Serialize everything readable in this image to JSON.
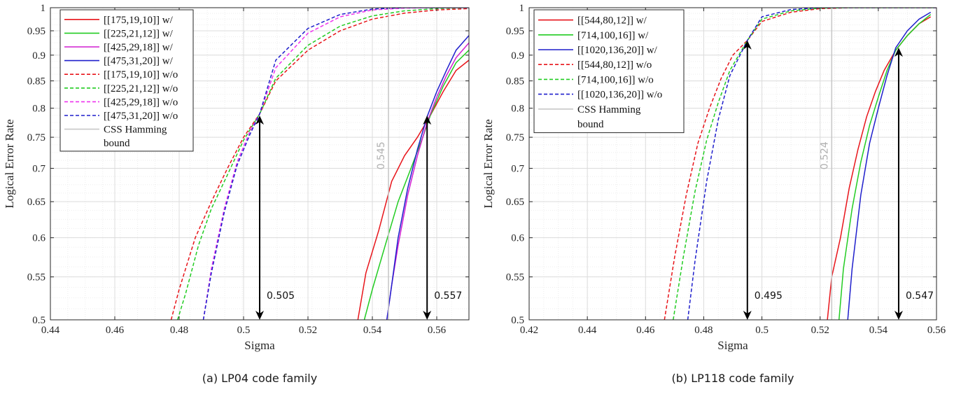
{
  "chart_data": [
    {
      "type": "line",
      "caption": "(a) LP04 code family",
      "xlabel": "Sigma",
      "ylabel": "Logical Error Rate",
      "xlim": [
        0.44,
        0.57
      ],
      "ylim": [
        0.5,
        1
      ],
      "y_scale": "log",
      "grid": true,
      "legend_position": "top-left",
      "x_ticks": [
        0.44,
        0.46,
        0.48,
        0.5,
        0.52,
        0.54,
        0.56
      ],
      "x_tick_labels": [
        "0.44",
        "0.46",
        "0.48",
        "0.5",
        "0.52",
        "0.54",
        "0.56"
      ],
      "y_ticks": [
        0.5,
        0.55,
        0.6,
        0.65,
        0.7,
        0.75,
        0.8,
        0.85,
        0.9,
        0.95,
        1
      ],
      "y_tick_labels": [
        "0.5",
        "0.55",
        "0.6",
        "0.65",
        "0.7",
        "0.75",
        "0.8",
        "0.85",
        "0.9",
        "0.95",
        "1"
      ],
      "series": [
        {
          "name": "[[175,19,10]] w/",
          "color": "#e8141a",
          "dash": "solid",
          "x": [
            0.5355,
            0.538,
            0.542,
            0.546,
            0.55,
            0.554,
            0.558,
            0.562,
            0.566,
            0.57
          ],
          "y": [
            0.5,
            0.555,
            0.61,
            0.68,
            0.72,
            0.75,
            0.787,
            0.83,
            0.87,
            0.89
          ]
        },
        {
          "name": "[[225,21,12]] w/",
          "color": "#22cc22",
          "dash": "solid",
          "x": [
            0.5375,
            0.54,
            0.544,
            0.548,
            0.552,
            0.556,
            0.558,
            0.562,
            0.566,
            0.57
          ],
          "y": [
            0.5,
            0.535,
            0.59,
            0.65,
            0.7,
            0.755,
            0.787,
            0.84,
            0.885,
            0.91
          ]
        },
        {
          "name": "[[425,29,18]] w/",
          "color": "#d11fd1",
          "dash": "solid",
          "x": [
            0.5445,
            0.546,
            0.548,
            0.551,
            0.554,
            0.557,
            0.56,
            0.563,
            0.566,
            0.57
          ],
          "y": [
            0.5,
            0.54,
            0.59,
            0.66,
            0.72,
            0.775,
            0.82,
            0.86,
            0.895,
            0.925
          ]
        },
        {
          "name": "[[475,31,20]] w/",
          "color": "#1f1fcc",
          "dash": "solid",
          "x": [
            0.5445,
            0.546,
            0.548,
            0.551,
            0.554,
            0.557,
            0.56,
            0.563,
            0.566,
            0.57
          ],
          "y": [
            0.5,
            0.54,
            0.6,
            0.67,
            0.73,
            0.785,
            0.83,
            0.87,
            0.91,
            0.94
          ]
        },
        {
          "name": "[[175,19,10]] w/o",
          "color": "#e8141a",
          "dash": "dashed",
          "x": [
            0.4775,
            0.48,
            0.485,
            0.49,
            0.495,
            0.5,
            0.505,
            0.51,
            0.52,
            0.53,
            0.54,
            0.55,
            0.56,
            0.57
          ],
          "y": [
            0.5,
            0.535,
            0.6,
            0.65,
            0.7,
            0.75,
            0.79,
            0.85,
            0.91,
            0.95,
            0.975,
            0.988,
            0.995,
            0.998
          ]
        },
        {
          "name": "[[225,21,12]] w/o",
          "color": "#22cc22",
          "dash": "dashed",
          "x": [
            0.4795,
            0.482,
            0.486,
            0.49,
            0.495,
            0.5,
            0.505,
            0.51,
            0.52,
            0.53,
            0.54,
            0.55,
            0.56,
            0.57
          ],
          "y": [
            0.5,
            0.53,
            0.59,
            0.64,
            0.69,
            0.745,
            0.79,
            0.855,
            0.92,
            0.96,
            0.982,
            0.993,
            0.998,
            1.0
          ]
        },
        {
          "name": "[[425,29,18]] w/o",
          "color": "#ee33ee",
          "dash": "dashed",
          "x": [
            0.4875,
            0.49,
            0.494,
            0.498,
            0.502,
            0.505,
            0.51,
            0.52,
            0.53,
            0.54,
            0.55,
            0.56,
            0.57
          ],
          "y": [
            0.5,
            0.56,
            0.64,
            0.71,
            0.76,
            0.79,
            0.875,
            0.945,
            0.98,
            0.995,
            0.999,
            1.0,
            1.0
          ]
        },
        {
          "name": "[[475,31,20]] w/o",
          "color": "#1f1fcc",
          "dash": "dashed",
          "x": [
            0.4875,
            0.49,
            0.494,
            0.498,
            0.502,
            0.505,
            0.51,
            0.52,
            0.53,
            0.54,
            0.55,
            0.56,
            0.57
          ],
          "y": [
            0.5,
            0.555,
            0.635,
            0.705,
            0.755,
            0.79,
            0.89,
            0.955,
            0.985,
            0.997,
            1.0,
            1.0,
            1.0
          ]
        },
        {
          "name": "CSS Hamming bound",
          "color": "#c8c8c8",
          "dash": "solid",
          "x": [
            0.545,
            0.545
          ],
          "y": [
            0.5,
            1.0
          ]
        }
      ],
      "legend_labels": [
        "[[175,19,10]] w/",
        "[[225,21,12]] w/",
        "[[425,29,18]] w/",
        "[[475,31,20]] w/",
        "[[175,19,10]] w/o",
        "[[225,21,12]] w/o",
        "[[425,29,18]] w/o",
        "[[475,31,20]] w/o",
        "CSS Hamming",
        "bound"
      ],
      "annotations": [
        {
          "text": "0.505",
          "x": 0.505,
          "y_top": 0.787
        },
        {
          "text": "0.557",
          "x": 0.557,
          "y_top": 0.787
        },
        {
          "text": "0.545",
          "x": 0.545,
          "y": 0.72,
          "rotated": true
        }
      ]
    },
    {
      "type": "line",
      "caption": "(b) LP118 code family",
      "xlabel": "Sigma",
      "ylabel": "Logical Error Rate",
      "xlim": [
        0.42,
        0.56
      ],
      "ylim": [
        0.5,
        1
      ],
      "y_scale": "log",
      "grid": true,
      "legend_position": "top-left",
      "x_ticks": [
        0.42,
        0.44,
        0.46,
        0.48,
        0.5,
        0.52,
        0.54,
        0.56
      ],
      "x_tick_labels": [
        "0.42",
        "0.44",
        "0.46",
        "0.48",
        "0.5",
        "0.52",
        "0.54",
        "0.56"
      ],
      "y_ticks": [
        0.5,
        0.55,
        0.6,
        0.65,
        0.7,
        0.75,
        0.8,
        0.85,
        0.9,
        0.95,
        1
      ],
      "y_tick_labels": [
        "0.5",
        "0.55",
        "0.6",
        "0.65",
        "0.7",
        "0.75",
        "0.8",
        "0.85",
        "0.9",
        "0.95",
        "1"
      ],
      "series": [
        {
          "name": "[[544,80,12]] w/",
          "color": "#e8141a",
          "dash": "solid",
          "x": [
            0.5225,
            0.524,
            0.527,
            0.53,
            0.533,
            0.536,
            0.539,
            0.542,
            0.546,
            0.55,
            0.554,
            0.558
          ],
          "y": [
            0.5,
            0.55,
            0.6,
            0.67,
            0.73,
            0.785,
            0.83,
            0.87,
            0.91,
            0.94,
            0.965,
            0.98
          ]
        },
        {
          "name": "[714,100,16]] w/",
          "color": "#22cc22",
          "dash": "solid",
          "x": [
            0.5265,
            0.528,
            0.531,
            0.534,
            0.537,
            0.54,
            0.543,
            0.546,
            0.55,
            0.554,
            0.558
          ],
          "y": [
            0.5,
            0.56,
            0.64,
            0.71,
            0.77,
            0.82,
            0.87,
            0.91,
            0.94,
            0.965,
            0.985
          ]
        },
        {
          "name": "[[1020,136,20]] w/",
          "color": "#1f1fcc",
          "dash": "solid",
          "x": [
            0.5295,
            0.531,
            0.534,
            0.537,
            0.54,
            0.543,
            0.546,
            0.55,
            0.554,
            0.558
          ],
          "y": [
            0.5,
            0.56,
            0.66,
            0.74,
            0.8,
            0.86,
            0.915,
            0.95,
            0.975,
            0.99
          ]
        },
        {
          "name": "[[544,80,12]] w/o",
          "color": "#e8141a",
          "dash": "dashed",
          "x": [
            0.4665,
            0.47,
            0.474,
            0.478,
            0.482,
            0.486,
            0.49,
            0.495,
            0.5,
            0.51,
            0.52,
            0.53,
            0.54,
            0.55,
            0.56
          ],
          "y": [
            0.5,
            0.575,
            0.66,
            0.74,
            0.8,
            0.855,
            0.9,
            0.93,
            0.97,
            0.99,
            0.998,
            1.0,
            1.0,
            1.0,
            1.0
          ]
        },
        {
          "name": "[714,100,16]] w/o",
          "color": "#22cc22",
          "dash": "dashed",
          "x": [
            0.4695,
            0.473,
            0.477,
            0.481,
            0.485,
            0.489,
            0.495,
            0.5,
            0.51,
            0.52,
            0.53,
            0.54,
            0.55,
            0.56
          ],
          "y": [
            0.5,
            0.575,
            0.665,
            0.745,
            0.81,
            0.87,
            0.93,
            0.975,
            0.993,
            0.999,
            1.0,
            1.0,
            1.0,
            1.0
          ]
        },
        {
          "name": "[[1020,136,20]] w/o",
          "color": "#1f1fcc",
          "dash": "dashed",
          "x": [
            0.4745,
            0.477,
            0.481,
            0.485,
            0.489,
            0.495,
            0.5,
            0.51,
            0.52,
            0.53,
            0.54,
            0.55,
            0.56
          ],
          "y": [
            0.5,
            0.57,
            0.68,
            0.78,
            0.86,
            0.93,
            0.98,
            0.996,
            1.0,
            1.0,
            1.0,
            1.0,
            1.0
          ]
        },
        {
          "name": "CSS Hamming bound",
          "color": "#c8c8c8",
          "dash": "solid",
          "x": [
            0.524,
            0.524
          ],
          "y": [
            0.5,
            1.0
          ]
        }
      ],
      "legend_labels": [
        "[[544,80,12]] w/",
        "[714,100,16]] w/",
        "[[1020,136,20]] w/",
        "[[544,80,12]] w/o",
        "[714,100,16]] w/o",
        "[[1020,136,20]] w/o",
        "CSS Hamming",
        "bound"
      ],
      "annotations": [
        {
          "text": "0.495",
          "x": 0.495,
          "y_top": 0.93
        },
        {
          "text": "0.547",
          "x": 0.547,
          "y_top": 0.915
        },
        {
          "text": "0.524",
          "x": 0.524,
          "y": 0.72,
          "rotated": true
        }
      ]
    }
  ]
}
